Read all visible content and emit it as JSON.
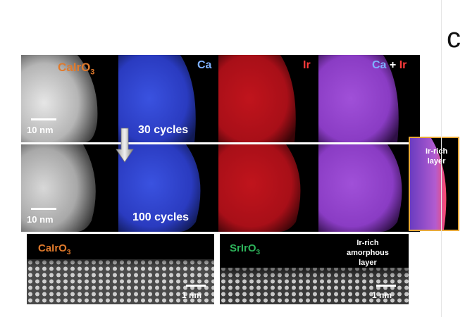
{
  "figure": {
    "panel_letter": "c",
    "top": {
      "panels": [
        {
          "label": "CaIrO",
          "sub": "3",
          "color": "#e07a2c"
        },
        {
          "label": "Ca",
          "color": "#7fb0ff"
        },
        {
          "label": "Ir",
          "color": "#ff3b3b"
        },
        {
          "label_a": "Ca",
          "plus": "+",
          "label_b": "Ir",
          "color_a": "#7fb0ff",
          "color_b": "#ff3b3b"
        }
      ],
      "scalebar_label": "10 nm",
      "cycles_label": "30 cycles"
    },
    "bottom_row": {
      "scalebar_label": "10 nm",
      "cycles_label": "100 cycles"
    },
    "inset": {
      "line1": "Ir-rich",
      "line2": "layer"
    },
    "hrtem": [
      {
        "label": "CaIrO",
        "sub": "3",
        "color": "#e07a2c",
        "scalebar_label": "1 nm"
      },
      {
        "label": "SrIrO",
        "sub": "3",
        "color": "#2db35a",
        "scalebar_label": "1 nm",
        "note_lines": [
          "Ir-rich",
          "amorphous",
          "layer"
        ]
      }
    ]
  }
}
